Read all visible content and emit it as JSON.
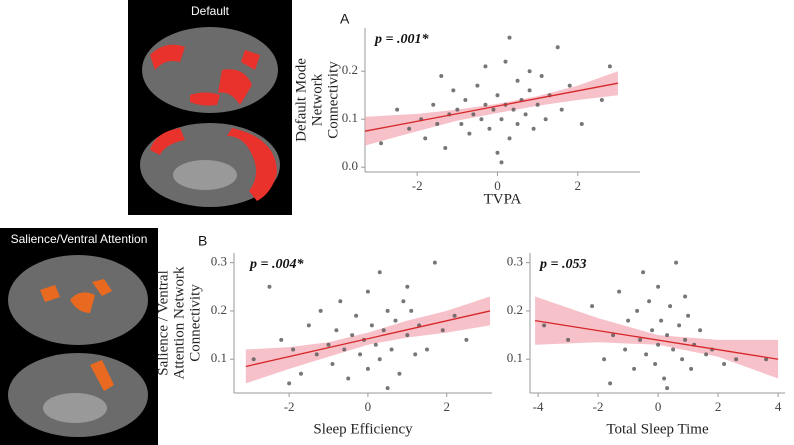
{
  "brain_panels": [
    {
      "label": "Default"
    },
    {
      "label": "Salience/Ventral Attention"
    }
  ],
  "chart_data": [
    {
      "type": "scatter",
      "panel": "A",
      "annotation": "p = .001*",
      "x_label": "TVPA",
      "y_label": [
        "Default Mode",
        "Network",
        "Connectivity"
      ],
      "xlim": [
        -3.3,
        3.55
      ],
      "ylim": [
        -0.01,
        0.29
      ],
      "xticks": [
        -2,
        0,
        2
      ],
      "yticks": [
        {
          "value": 0,
          "label": "0.0"
        },
        0.1,
        0.2
      ],
      "point_color": "#555555",
      "line_color": "#d62728",
      "band_color": "#f4a6b4",
      "x": [
        -2.9,
        -2.5,
        -2.2,
        -1.9,
        -1.8,
        -1.6,
        -1.5,
        -1.3,
        -1.2,
        -1.1,
        -1.0,
        -0.9,
        -0.8,
        -0.7,
        -0.6,
        -0.5,
        -0.4,
        -0.3,
        -0.2,
        -0.1,
        0.0,
        0.0,
        0.1,
        0.2,
        0.2,
        0.3,
        0.3,
        0.4,
        0.5,
        0.5,
        0.6,
        0.7,
        0.8,
        0.8,
        0.9,
        1.0,
        1.1,
        1.2,
        1.3,
        1.5,
        1.6,
        1.8,
        2.1,
        2.6,
        2.8,
        -0.3,
        0.1,
        -1.4
      ],
      "y": [
        0.05,
        0.12,
        0.08,
        0.1,
        0.06,
        0.13,
        0.09,
        0.04,
        0.11,
        0.16,
        0.12,
        0.09,
        0.14,
        0.07,
        0.11,
        0.17,
        0.1,
        0.13,
        0.08,
        0.12,
        0.15,
        0.03,
        0.1,
        0.22,
        0.13,
        0.27,
        0.06,
        0.12,
        0.18,
        0.09,
        0.14,
        0.11,
        0.2,
        0.16,
        0.08,
        0.13,
        0.19,
        0.1,
        0.15,
        0.25,
        0.12,
        0.17,
        0.09,
        0.14,
        0.21,
        0.21,
        0.01,
        0.19
      ],
      "fit_line": {
        "x": [
          -3.3,
          3
        ],
        "y": [
          0.075,
          0.175
        ]
      },
      "ci_band": {
        "x": [
          -3.3,
          -2,
          -1,
          0,
          1,
          2,
          3
        ],
        "lower": [
          0.045,
          0.075,
          0.097,
          0.113,
          0.128,
          0.14,
          0.15
        ],
        "upper": [
          0.105,
          0.111,
          0.12,
          0.132,
          0.148,
          0.17,
          0.2
        ]
      }
    },
    {
      "type": "scatter",
      "panel": "B",
      "annotation": "p = .004*",
      "x_label": "Sleep Efficiency",
      "y_label": [
        "Salience / Ventral",
        "Attention Network",
        "Connectivity"
      ],
      "xlim": [
        -3.4,
        3.15
      ],
      "ylim": [
        0.03,
        0.32
      ],
      "xticks": [
        -2,
        0,
        2
      ],
      "yticks": [
        0.1,
        0.2,
        0.3
      ],
      "point_color": "#555555",
      "line_color": "#d62728",
      "band_color": "#f4a6b4",
      "x": [
        -2.9,
        -2.5,
        -2.2,
        -1.9,
        -1.7,
        -1.5,
        -1.3,
        -1.2,
        -1.0,
        -0.9,
        -0.8,
        -0.7,
        -0.6,
        -0.5,
        -0.4,
        -0.3,
        -0.2,
        -0.1,
        0.0,
        0.0,
        0.1,
        0.2,
        0.3,
        0.3,
        0.4,
        0.5,
        0.6,
        0.7,
        0.8,
        0.9,
        1.0,
        1.1,
        1.2,
        1.3,
        1.5,
        1.7,
        1.9,
        2.2,
        2.5,
        -2.0,
        0.5,
        1.0
      ],
      "y": [
        0.1,
        0.25,
        0.14,
        0.12,
        0.07,
        0.17,
        0.11,
        0.2,
        0.13,
        0.09,
        0.16,
        0.22,
        0.12,
        0.06,
        0.15,
        0.19,
        0.11,
        0.14,
        0.24,
        0.08,
        0.17,
        0.13,
        0.28,
        0.1,
        0.16,
        0.2,
        0.12,
        0.18,
        0.07,
        0.22,
        0.15,
        0.2,
        0.11,
        0.17,
        0.12,
        0.3,
        0.16,
        0.19,
        0.14,
        0.05,
        0.04,
        0.25
      ],
      "fit_line": {
        "x": [
          -3.1,
          3.1
        ],
        "y": [
          0.085,
          0.2
        ]
      },
      "ci_band": {
        "x": [
          -3.1,
          -2,
          -1,
          0,
          1,
          2,
          3.1
        ],
        "lower": [
          0.05,
          0.08,
          0.105,
          0.13,
          0.145,
          0.155,
          0.17
        ],
        "upper": [
          0.12,
          0.125,
          0.135,
          0.155,
          0.18,
          0.2,
          0.23
        ]
      }
    },
    {
      "type": "scatter",
      "annotation": "p = .053",
      "x_label": "Total Sleep Time",
      "xlim": [
        -4.27,
        4.23
      ],
      "ylim": [
        0.03,
        0.32
      ],
      "xticks": [
        -4,
        -2,
        0,
        2,
        4
      ],
      "yticks": [
        0.1,
        0.2,
        0.3
      ],
      "point_color": "#555555",
      "line_color": "#d62728",
      "band_color": "#f4a6b4",
      "x": [
        -3.8,
        -3.0,
        -2.2,
        -1.8,
        -1.5,
        -1.3,
        -1.1,
        -1.0,
        -0.8,
        -0.7,
        -0.6,
        -0.5,
        -0.4,
        -0.3,
        -0.2,
        -0.1,
        0.0,
        0.0,
        0.1,
        0.2,
        0.3,
        0.4,
        0.5,
        0.6,
        0.7,
        0.8,
        0.9,
        1.0,
        1.1,
        1.2,
        1.4,
        1.6,
        1.8,
        2.2,
        2.6,
        3.6,
        -1.6,
        0.3,
        0.9
      ],
      "y": [
        0.17,
        0.14,
        0.21,
        0.1,
        0.15,
        0.24,
        0.12,
        0.18,
        0.08,
        0.2,
        0.14,
        0.28,
        0.11,
        0.22,
        0.16,
        0.09,
        0.13,
        0.25,
        0.18,
        0.06,
        0.15,
        0.21,
        0.12,
        0.3,
        0.17,
        0.1,
        0.14,
        0.19,
        0.08,
        0.13,
        0.16,
        0.11,
        0.12,
        0.09,
        0.1,
        0.1,
        0.05,
        0.04,
        0.23
      ],
      "fit_line": {
        "x": [
          -4.1,
          4
        ],
        "y": [
          0.18,
          0.1
        ]
      },
      "ci_band": {
        "x": [
          -4.1,
          -2,
          0,
          2,
          4
        ],
        "lower": [
          0.13,
          0.135,
          0.13,
          0.105,
          0.06
        ],
        "upper": [
          0.23,
          0.185,
          0.15,
          0.14,
          0.14
        ]
      }
    }
  ]
}
